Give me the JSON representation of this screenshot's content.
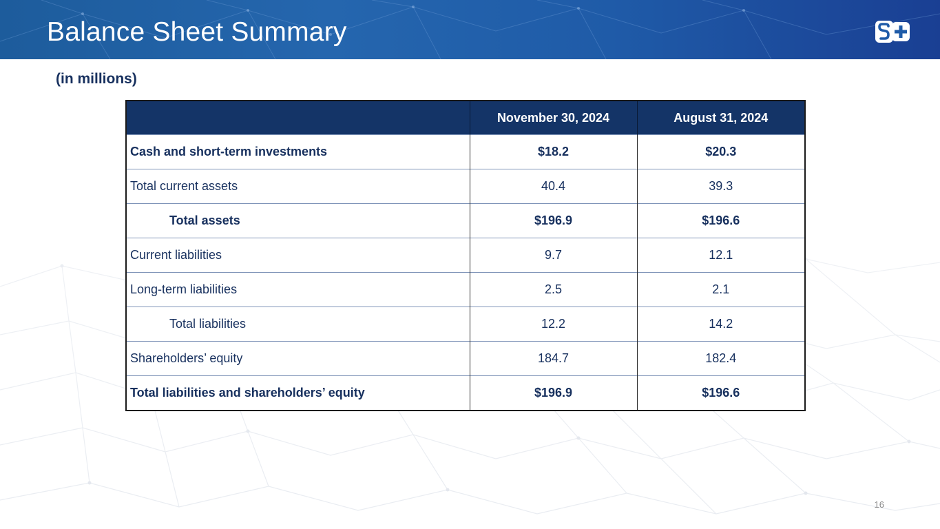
{
  "header": {
    "title": "Balance Sheet Summary",
    "logo_icon": "splus-logo-icon"
  },
  "subtitle": "(in millions)",
  "table": {
    "columns": [
      "",
      "November 30, 2024",
      "August 31, 2024"
    ],
    "rows": [
      {
        "label": "Cash and short-term investments",
        "nov": "$18.2",
        "aug": "$20.3",
        "bold": true,
        "indent": false
      },
      {
        "label": "Total current assets",
        "nov": "40.4",
        "aug": "39.3",
        "bold": false,
        "indent": false
      },
      {
        "label": "Total assets",
        "nov": "$196.9",
        "aug": "$196.6",
        "bold": true,
        "indent": true
      },
      {
        "label": "Current liabilities",
        "nov": "9.7",
        "aug": "12.1",
        "bold": false,
        "indent": false
      },
      {
        "label": "Long-term liabilities",
        "nov": "2.5",
        "aug": "2.1",
        "bold": false,
        "indent": false
      },
      {
        "label": "Total liabilities",
        "nov": "12.2",
        "aug": "14.2",
        "bold": false,
        "indent": true
      },
      {
        "label": "Shareholders’ equity",
        "nov": "184.7",
        "aug": "182.4",
        "bold": false,
        "indent": false
      },
      {
        "label": "Total liabilities and shareholders’ equity",
        "nov": "$196.9",
        "aug": "$196.6",
        "bold": true,
        "indent": false
      }
    ]
  },
  "page_number": "16",
  "colors": {
    "header_blue": "#2566ae",
    "table_header": "#143467",
    "text_navy": "#17305e"
  }
}
